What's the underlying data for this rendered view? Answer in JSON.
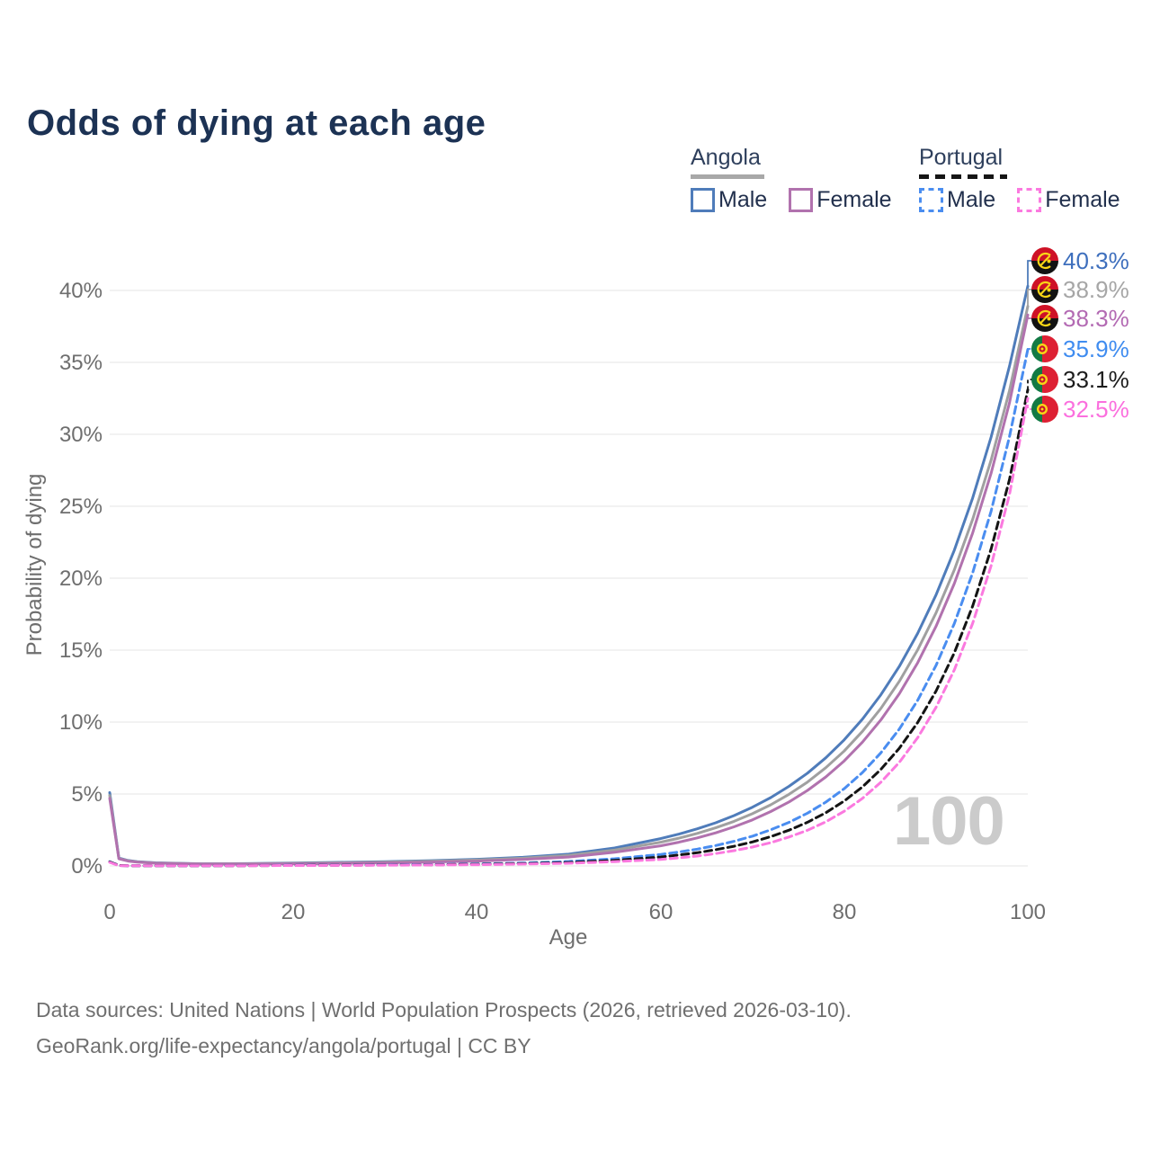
{
  "title": "Odds of dying at each age",
  "legend": {
    "angola": {
      "label": "Angola",
      "male_label": "Male",
      "female_label": "Female"
    },
    "portugal": {
      "label": "Portugal",
      "male_label": "Male",
      "female_label": "Female"
    }
  },
  "y_axis": {
    "title": "Probability of dying",
    "ticks": [
      "0%",
      "5%",
      "10%",
      "15%",
      "20%",
      "25%",
      "30%",
      "35%",
      "40%"
    ]
  },
  "x_axis": {
    "title": "Age",
    "ticks": [
      "0",
      "20",
      "40",
      "60",
      "80",
      "100"
    ]
  },
  "watermark": "100",
  "end_labels": [
    {
      "value": "40.3%",
      "flag": "angola",
      "color": "#3e6fbd"
    },
    {
      "value": "38.9%",
      "flag": "angola",
      "color": "#a6a6a6"
    },
    {
      "value": "38.3%",
      "flag": "angola",
      "color": "#b36ab3"
    },
    {
      "value": "35.9%",
      "flag": "portugal",
      "color": "#3f8cf0"
    },
    {
      "value": "33.1%",
      "flag": "portugal",
      "color": "#1c1c1c"
    },
    {
      "value": "32.5%",
      "flag": "portugal",
      "color": "#fb6fde"
    }
  ],
  "footer": {
    "line1": "Data sources: United Nations | World Population Prospects (2026, retrieved 2026-03-10).",
    "line2": "GeoRank.org/life-expectancy/angola/portugal | CC BY"
  },
  "chart_data": {
    "type": "line",
    "title": "Odds of dying at each age",
    "xlabel": "Age",
    "ylabel": "Probability of dying",
    "xlim": [
      0,
      100
    ],
    "ylim": [
      0,
      42
    ],
    "grid": "horizontal",
    "legend_position": "top-right",
    "x_tick_values": [
      0,
      20,
      40,
      60,
      80,
      100
    ],
    "y_tick_values": [
      0,
      5,
      10,
      15,
      20,
      25,
      30,
      35,
      40
    ],
    "x": [
      0,
      1,
      2,
      3,
      5,
      10,
      15,
      20,
      25,
      30,
      35,
      40,
      45,
      50,
      55,
      60,
      62,
      64,
      66,
      68,
      70,
      72,
      74,
      76,
      78,
      80,
      82,
      84,
      86,
      88,
      90,
      92,
      94,
      96,
      98,
      100
    ],
    "series": [
      {
        "id": "angola-male",
        "name": "Angola Male",
        "color": "#4f7cba",
        "dashed": false,
        "end_label": "40.3%",
        "values": [
          5.1,
          0.55,
          0.38,
          0.3,
          0.22,
          0.15,
          0.16,
          0.2,
          0.25,
          0.3,
          0.37,
          0.46,
          0.6,
          0.82,
          1.25,
          1.9,
          2.21,
          2.58,
          3.0,
          3.5,
          4.08,
          4.75,
          5.54,
          6.45,
          7.52,
          8.76,
          10.21,
          11.9,
          13.87,
          16.16,
          18.83,
          21.95,
          25.58,
          29.81,
          34.73,
          40.3
        ]
      },
      {
        "id": "angola-both",
        "name": "Angola",
        "color": "#a0a0a0",
        "dashed": false,
        "end_label": "38.9%",
        "values": [
          4.9,
          0.52,
          0.36,
          0.28,
          0.2,
          0.14,
          0.15,
          0.18,
          0.22,
          0.27,
          0.33,
          0.41,
          0.54,
          0.74,
          1.1,
          1.65,
          1.93,
          2.26,
          2.65,
          3.1,
          3.63,
          4.25,
          4.98,
          5.83,
          6.83,
          7.99,
          9.36,
          10.95,
          12.83,
          15.02,
          17.58,
          20.58,
          24.1,
          28.21,
          33.03,
          38.9
        ]
      },
      {
        "id": "angola-female",
        "name": "Angola Female",
        "color": "#b172ae",
        "dashed": false,
        "end_label": "38.3%",
        "values": [
          4.7,
          0.5,
          0.34,
          0.27,
          0.19,
          0.13,
          0.13,
          0.15,
          0.18,
          0.22,
          0.27,
          0.34,
          0.45,
          0.62,
          0.95,
          1.4,
          1.65,
          1.95,
          2.3,
          2.72,
          3.2,
          3.78,
          4.45,
          5.25,
          6.19,
          7.3,
          8.61,
          10.15,
          11.97,
          14.12,
          16.65,
          19.63,
          23.15,
          27.3,
          32.19,
          38.3
        ]
      },
      {
        "id": "portugal-male",
        "name": "Portugal Male",
        "color": "#4a8df0",
        "dashed": true,
        "end_label": "35.9%",
        "values": [
          0.3,
          0.03,
          0.02,
          0.02,
          0.01,
          0.01,
          0.03,
          0.05,
          0.06,
          0.08,
          0.1,
          0.14,
          0.2,
          0.31,
          0.5,
          0.8,
          0.97,
          1.17,
          1.42,
          1.71,
          2.07,
          2.51,
          3.03,
          3.67,
          4.44,
          5.37,
          6.5,
          7.86,
          9.51,
          11.51,
          13.93,
          16.85,
          20.38,
          24.66,
          29.84,
          35.9
        ]
      },
      {
        "id": "portugal-both",
        "name": "Portugal",
        "color": "#141414",
        "dashed": true,
        "end_label": "33.1%",
        "values": [
          0.28,
          0.03,
          0.02,
          0.02,
          0.01,
          0.01,
          0.02,
          0.04,
          0.05,
          0.06,
          0.08,
          0.11,
          0.16,
          0.24,
          0.39,
          0.62,
          0.76,
          0.92,
          1.13,
          1.37,
          1.67,
          2.04,
          2.49,
          3.04,
          3.7,
          4.51,
          5.5,
          6.71,
          8.18,
          9.97,
          12.15,
          14.82,
          18.07,
          22.03,
          26.85,
          33.1
        ]
      },
      {
        "id": "portugal-female",
        "name": "Portugal Female",
        "color": "#fb79df",
        "dashed": true,
        "end_label": "32.5%",
        "values": [
          0.25,
          0.02,
          0.02,
          0.01,
          0.01,
          0.01,
          0.02,
          0.03,
          0.04,
          0.05,
          0.07,
          0.09,
          0.13,
          0.19,
          0.3,
          0.45,
          0.56,
          0.69,
          0.86,
          1.06,
          1.31,
          1.62,
          2.01,
          2.48,
          3.07,
          3.8,
          4.7,
          5.82,
          7.2,
          8.91,
          11.02,
          13.63,
          16.87,
          20.87,
          25.82,
          32.5
        ]
      }
    ]
  }
}
